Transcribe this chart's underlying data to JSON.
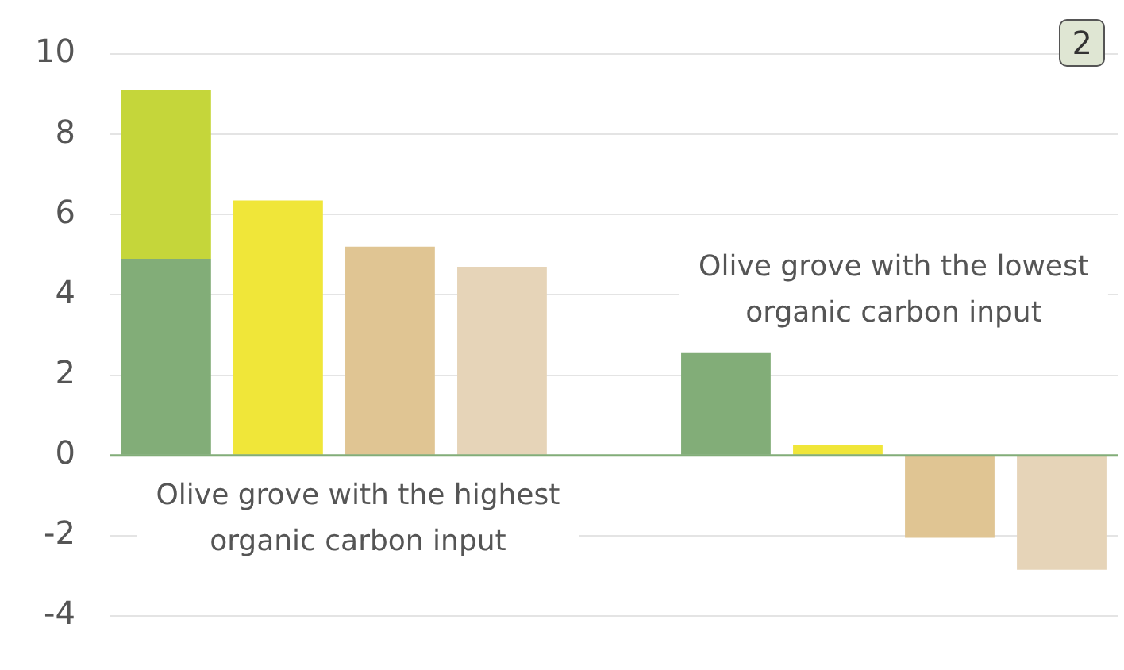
{
  "chart_data": {
    "type": "bar",
    "stacked": true,
    "categories": [
      null,
      null,
      null,
      null,
      null,
      null,
      null,
      null,
      null
    ],
    "series": [
      {
        "colors": [
          "#82ad78",
          "#f0e639",
          "#e0c593",
          "#e6d4b8",
          null,
          "#82ad78",
          "#f0e639",
          "#e0c593",
          "#e6d4b8"
        ],
        "values": [
          4.9,
          6.35,
          5.2,
          4.7,
          null,
          2.55,
          0.25,
          -2.05,
          -2.85
        ]
      },
      {
        "color": "#c5d63a",
        "values": [
          4.2,
          null,
          null,
          null,
          null,
          null,
          null,
          null,
          null
        ]
      }
    ],
    "ylim": [
      -4,
      10
    ],
    "yticks": [
      -4,
      -2,
      0,
      2,
      4,
      6,
      8,
      10
    ],
    "grid": "y",
    "legend": false,
    "tick_labels": "y",
    "ref_lines": [
      {
        "axis": "y",
        "value": 0,
        "color": "#82ad78"
      }
    ],
    "annotations": [
      "Olive grove with the highest organic carbon input",
      "Olive grove with the lowest organic carbon input",
      "2"
    ]
  }
}
